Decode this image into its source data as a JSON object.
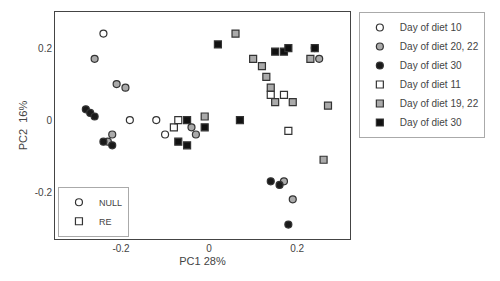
{
  "chart_data": {
    "type": "scatter",
    "xlabel": "PC1 28%",
    "ylabel": "PC2  16%",
    "xlim": [
      -0.35,
      0.32
    ],
    "ylim": [
      -0.33,
      0.3
    ],
    "xticks": [
      -0.2,
      0.0,
      0.2
    ],
    "yticks": [
      -0.2,
      0.0,
      0.2
    ],
    "grid": false,
    "series": [
      {
        "name": "Day of diet 10",
        "marker": "circle",
        "color": "white",
        "x": [
          -0.18,
          -0.12,
          -0.1,
          -0.24
        ],
        "y": [
          0.0,
          0.0,
          -0.04,
          0.24
        ]
      },
      {
        "name": "Day of diet 20, 22",
        "marker": "circle",
        "color": "#aaaaaa",
        "x": [
          -0.26,
          -0.21,
          -0.19,
          -0.22,
          -0.23,
          -0.04,
          -0.03,
          0.17,
          0.19,
          0.25
        ],
        "y": [
          0.17,
          0.1,
          0.09,
          -0.04,
          -0.06,
          -0.02,
          -0.04,
          -0.17,
          -0.22,
          0.17
        ]
      },
      {
        "name": "Day of diet 30",
        "marker": "circle",
        "color": "#1a1a1a",
        "x": [
          -0.28,
          -0.27,
          -0.26,
          -0.24,
          -0.22,
          0.14,
          0.16,
          0.18,
          0.24
        ],
        "y": [
          0.03,
          0.02,
          0.01,
          -0.06,
          -0.07,
          -0.17,
          -0.18,
          -0.29,
          0.2
        ]
      },
      {
        "name": "Day of diet 11",
        "marker": "square",
        "color": "white",
        "x": [
          -0.08,
          -0.07,
          0.14,
          0.17,
          0.18
        ],
        "y": [
          -0.02,
          0.0,
          0.07,
          0.07,
          -0.03
        ]
      },
      {
        "name": "Day of diet 19, 22",
        "marker": "square",
        "color": "#aaaaaa",
        "x": [
          -0.01,
          0.06,
          0.1,
          0.12,
          0.13,
          0.14,
          0.15,
          0.19,
          0.27,
          0.26,
          0.23
        ],
        "y": [
          0.01,
          0.24,
          0.17,
          0.15,
          0.12,
          0.09,
          0.05,
          0.05,
          0.04,
          -0.11,
          0.17
        ]
      },
      {
        "name": "Day of diet 30",
        "marker": "square",
        "color": "#111111",
        "x": [
          -0.07,
          -0.05,
          -0.05,
          -0.01,
          0.02,
          0.07,
          0.15,
          0.17,
          0.18,
          0.24
        ],
        "y": [
          -0.06,
          -0.07,
          0.0,
          -0.02,
          0.21,
          0.0,
          0.19,
          0.19,
          0.2,
          0.2
        ]
      }
    ],
    "marker_legend": [
      {
        "name": "NULL",
        "marker": "circle",
        "color": "white"
      },
      {
        "name": "RE",
        "marker": "square",
        "color": "white"
      }
    ]
  }
}
